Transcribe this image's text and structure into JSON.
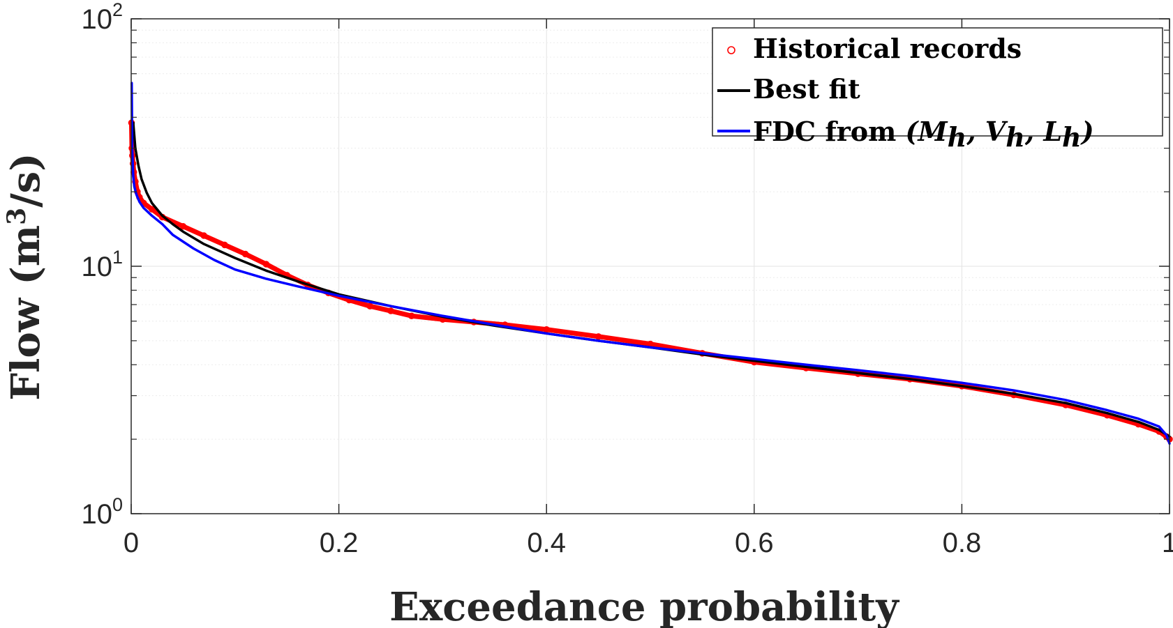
{
  "chart_data": {
    "type": "line",
    "xlabel": "Exceedance probability",
    "ylabel": {
      "prefix": "Flow (m",
      "superscript": "3",
      "suffix": "/s)"
    },
    "xlim": [
      0,
      1
    ],
    "ylim": [
      1,
      100
    ],
    "yscale": "log",
    "grid": true,
    "legend_position": "top-right",
    "x_ticks": [
      {
        "value": 0,
        "label": "0"
      },
      {
        "value": 0.2,
        "label": "0.2"
      },
      {
        "value": 0.4,
        "label": "0.4"
      },
      {
        "value": 0.6,
        "label": "0.6"
      },
      {
        "value": 0.8,
        "label": "0.8"
      },
      {
        "value": 1,
        "label": "1"
      }
    ],
    "y_ticks": [
      {
        "value": 1,
        "base": "10",
        "exp": "0"
      },
      {
        "value": 10,
        "base": "10",
        "exp": "1"
      },
      {
        "value": 100,
        "base": "10",
        "exp": "2"
      }
    ],
    "series": [
      {
        "name": "Historical records",
        "kind": "markers",
        "color": "#ff0000",
        "x": [
          0.0003,
          0.0007,
          0.0012,
          0.0018,
          0.0025,
          0.004,
          0.006,
          0.008,
          0.012,
          0.02,
          0.03,
          0.05,
          0.07,
          0.09,
          0.11,
          0.13,
          0.15,
          0.17,
          0.19,
          0.21,
          0.23,
          0.25,
          0.27,
          0.3,
          0.33,
          0.36,
          0.4,
          0.45,
          0.5,
          0.55,
          0.6,
          0.65,
          0.7,
          0.75,
          0.8,
          0.85,
          0.9,
          0.94,
          0.97,
          0.99,
          0.997,
          1.0
        ],
        "y": [
          38,
          30,
          28,
          26,
          24,
          22,
          20,
          19,
          18,
          17,
          15.8,
          14.5,
          13.3,
          12.2,
          11.2,
          10.2,
          9.2,
          8.4,
          7.8,
          7.3,
          6.9,
          6.6,
          6.3,
          6.1,
          5.95,
          5.8,
          5.55,
          5.2,
          4.85,
          4.45,
          4.1,
          3.88,
          3.68,
          3.5,
          3.28,
          3.02,
          2.75,
          2.5,
          2.3,
          2.15,
          2.05,
          2.0
        ]
      },
      {
        "name": "Best fit",
        "kind": "line",
        "color": "#000000",
        "x": [
          0.002,
          0.004,
          0.007,
          0.01,
          0.015,
          0.02,
          0.03,
          0.04,
          0.05,
          0.07,
          0.1,
          0.13,
          0.16,
          0.2,
          0.25,
          0.3,
          0.35,
          0.4,
          0.45,
          0.5,
          0.55,
          0.6,
          0.65,
          0.7,
          0.75,
          0.8,
          0.85,
          0.9,
          0.94,
          0.97,
          0.99,
          1.0
        ],
        "y": [
          38,
          30,
          25.5,
          22.5,
          19.8,
          18,
          16,
          14.8,
          13.8,
          12.3,
          10.8,
          9.6,
          8.7,
          7.7,
          6.9,
          6.25,
          5.75,
          5.35,
          5.0,
          4.7,
          4.4,
          4.15,
          3.92,
          3.7,
          3.5,
          3.28,
          3.05,
          2.8,
          2.55,
          2.35,
          2.18,
          2.05
        ]
      },
      {
        "name": "FDC from (M_h, V_h, L_h)",
        "kind": "line",
        "color": "#0000ff",
        "x": [
          0.0005,
          0.001,
          0.0015,
          0.002,
          0.003,
          0.005,
          0.008,
          0.012,
          0.02,
          0.03,
          0.04,
          0.06,
          0.08,
          0.1,
          0.13,
          0.16,
          0.2,
          0.25,
          0.3,
          0.35,
          0.4,
          0.45,
          0.5,
          0.55,
          0.6,
          0.65,
          0.7,
          0.75,
          0.8,
          0.85,
          0.9,
          0.94,
          0.97,
          0.99,
          0.997,
          1.0
        ],
        "y": [
          55,
          30,
          26,
          23,
          21,
          19.5,
          18.2,
          17.2,
          16,
          14.8,
          13.4,
          11.8,
          10.6,
          9.7,
          8.9,
          8.3,
          7.6,
          6.9,
          6.3,
          5.8,
          5.35,
          5.0,
          4.7,
          4.45,
          4.22,
          4.0,
          3.8,
          3.6,
          3.38,
          3.15,
          2.88,
          2.62,
          2.42,
          2.25,
          2.08,
          1.92
        ]
      }
    ]
  },
  "legend": {
    "items": [
      {
        "label": "Historical records"
      },
      {
        "label": "Best fit"
      },
      {
        "label_prefix": "FDC from",
        "math": [
          "M",
          "h",
          "V",
          "h",
          "L",
          "h"
        ]
      }
    ]
  }
}
